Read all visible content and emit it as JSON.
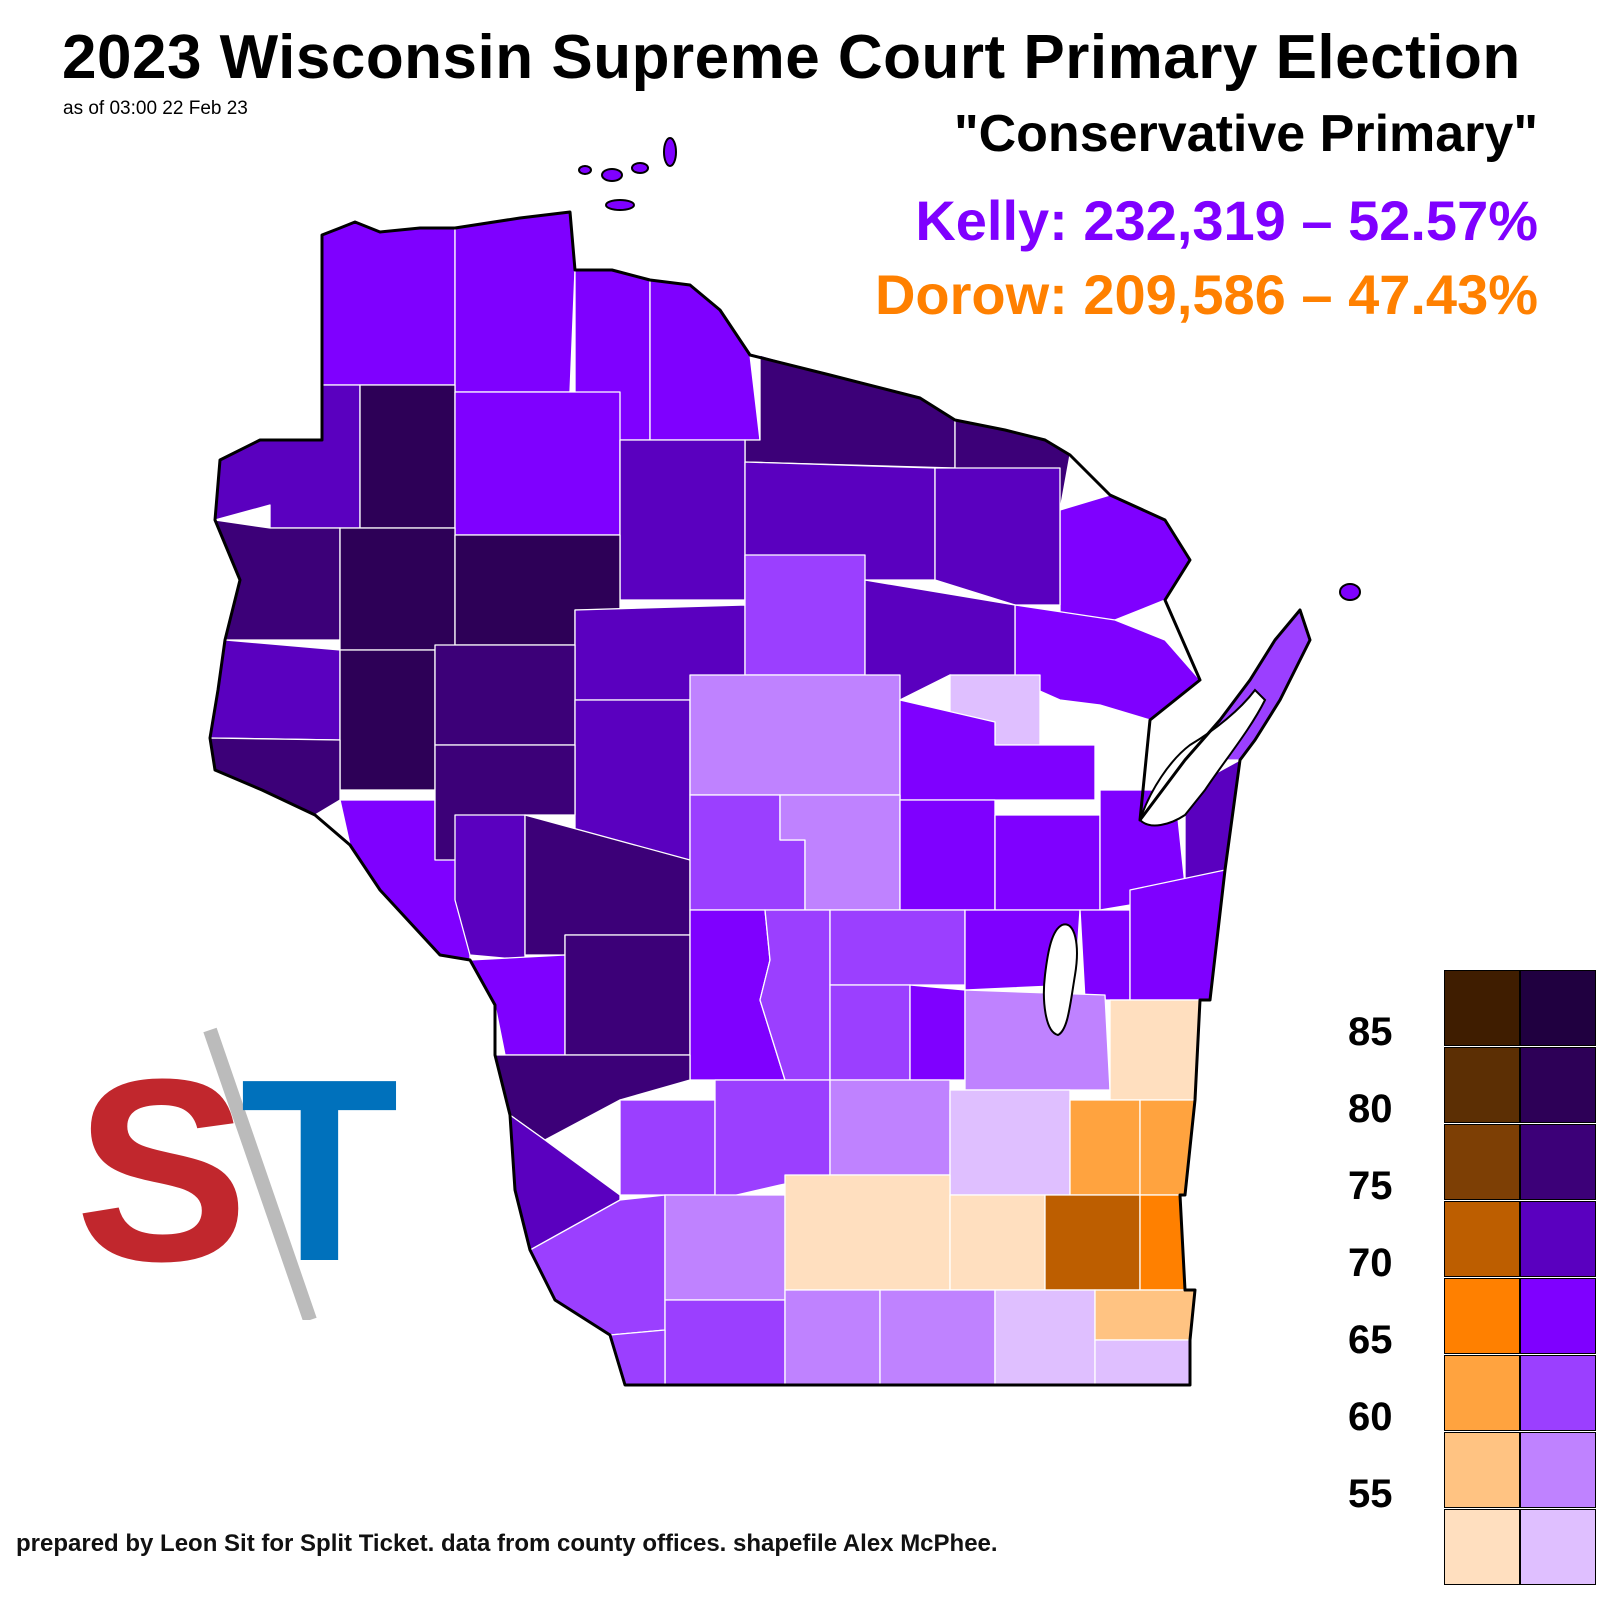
{
  "title": "2023 Wisconsin Supreme Court Primary Election",
  "timestamp": "as of 03:00 22 Feb 23",
  "subtitle": "\"Conservative Primary\"",
  "candidates": [
    {
      "label": "Kelly: 232,319 – 52.57%",
      "color": "#7f00ff"
    },
    {
      "label": "Dorow: 209,586 – 47.43%",
      "color": "#ff8000"
    }
  ],
  "footer": "prepared by Leon Sit for Split Ticket. data from county offices. shapefile Alex McPhee.",
  "legend": {
    "ticks": [
      "85",
      "80",
      "75",
      "70",
      "65",
      "60",
      "55"
    ],
    "dorow_colors": [
      "#3f1d00",
      "#5c2f04",
      "#7d3f05",
      "#bd5e00",
      "#ff8000",
      "#ffa33f",
      "#ffc382",
      "#ffdfbf"
    ],
    "kelly_colors": [
      "#200040",
      "#2d0057",
      "#3c0078",
      "#5a00bf",
      "#7f00ff",
      "#9b3fff",
      "#bf82ff",
      "#dfbfff"
    ]
  },
  "logo": {
    "text_left": "S",
    "text_right": "T",
    "left_color": "#c1272d",
    "right_color": "#0071bc"
  }
}
